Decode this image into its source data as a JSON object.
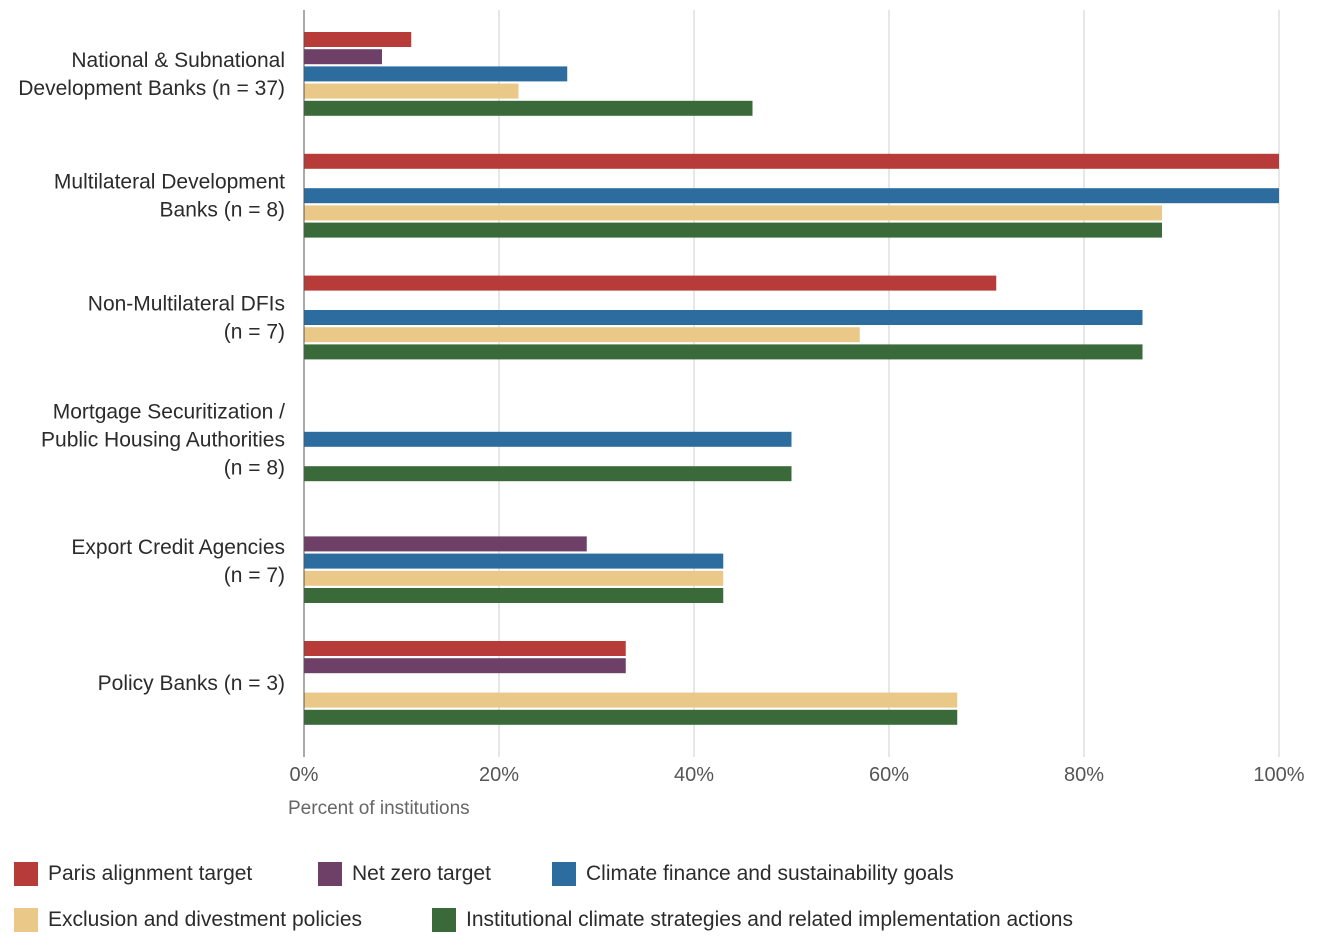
{
  "chart_data": {
    "type": "bar",
    "orientation": "horizontal",
    "xlabel": "Percent of institutions",
    "xlim": [
      0,
      100
    ],
    "x_ticks": [
      "0%",
      "20%",
      "40%",
      "60%",
      "80%",
      "100%"
    ],
    "grid": "vertical gridlines",
    "legend_position": "bottom",
    "categories": [
      [
        "National & Subnational",
        "Development Banks (n = 37)"
      ],
      [
        "Multilateral Development",
        "Banks (n = 8)"
      ],
      [
        "Non-Multilateral DFIs",
        "(n = 7)"
      ],
      [
        "Mortgage Securitization /",
        "Public Housing Authorities",
        "(n = 8)"
      ],
      [
        "Export Credit Agencies",
        "(n = 7)"
      ],
      [
        "Policy Banks (n = 3)"
      ]
    ],
    "series": [
      {
        "name": "Paris alignment target",
        "color": "#b73b38",
        "values": [
          11,
          100,
          71,
          0,
          0,
          33
        ]
      },
      {
        "name": "Net zero target",
        "color": "#6e3f67",
        "values": [
          8,
          0,
          0,
          0,
          29,
          33
        ]
      },
      {
        "name": "Climate finance and sustainability goals",
        "color": "#2d6c9f",
        "values": [
          27,
          100,
          86,
          50,
          43,
          0
        ]
      },
      {
        "name": "Exclusion and divestment policies",
        "color": "#eac887",
        "values": [
          22,
          88,
          57,
          0,
          43,
          67
        ]
      },
      {
        "name": "Institutional climate strategies and related implementation actions",
        "color": "#3a6a39",
        "values": [
          46,
          88,
          86,
          50,
          43,
          67
        ]
      }
    ]
  }
}
